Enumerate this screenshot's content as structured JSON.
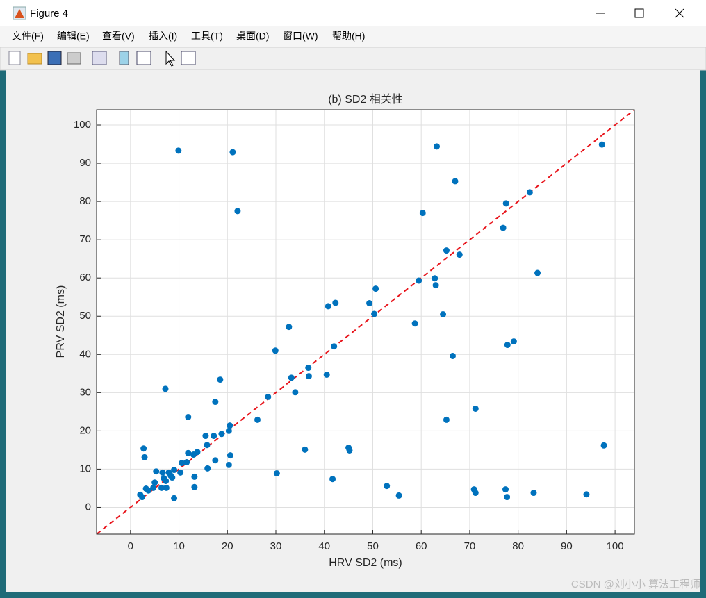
{
  "window": {
    "title": "Figure 4",
    "menu": [
      "文件(F)",
      "编辑(E)",
      "查看(V)",
      "插入(I)",
      "工具(T)",
      "桌面(D)",
      "窗口(W)",
      "帮助(H)"
    ]
  },
  "watermark": "CSDN @刘小小 算法工程师",
  "chart_data": {
    "type": "scatter",
    "title": "(b) SD2 相关性",
    "x_label": "HRV SD2 (ms)",
    "y_label": "PRV SD2 (ms)",
    "series": [
      {
        "color": "#0072bd",
        "x": [
          9.9,
          21.1,
          22.1,
          63.2,
          67.0,
          60.3,
          97.3,
          77.5,
          82.4,
          76.9,
          65.2,
          67.9,
          84.0,
          59.5,
          62.8,
          63.0,
          50.6,
          49.3,
          42.3,
          40.8,
          50.3,
          64.5,
          58.7,
          32.7,
          79.1,
          77.8,
          42.0,
          29.9,
          66.5,
          36.7,
          33.2,
          36.8,
          40.5,
          18.5,
          7.2,
          34.0,
          28.4,
          17.5,
          71.2,
          26.2,
          65.2,
          11.9,
          20.5,
          20.3,
          18.8,
          17.2,
          15.5,
          15.8,
          97.7,
          45.0,
          45.2,
          36.0,
          2.7,
          13.8,
          13.0,
          11.9,
          20.6,
          2.9,
          17.5,
          11.6,
          10.6,
          20.3,
          15.9,
          9.0,
          5.3,
          10.3,
          6.6,
          7.9,
          30.2,
          8.3,
          13.2,
          6.9,
          8.6,
          41.7,
          5.0,
          7.3,
          52.9,
          13.2,
          7.4,
          6.4,
          4.7,
          3.2,
          3.7,
          70.9,
          77.4,
          71.2,
          83.2,
          94.1,
          55.4,
          77.7,
          2.0,
          2.4,
          9.0
        ],
        "values": [
          93.3,
          92.9,
          77.5,
          94.4,
          85.3,
          77.0,
          94.9,
          79.5,
          82.4,
          73.1,
          67.2,
          66.1,
          61.3,
          59.3,
          59.9,
          58.1,
          57.2,
          53.4,
          53.5,
          52.6,
          50.6,
          50.5,
          48.1,
          47.2,
          43.4,
          42.5,
          42.1,
          41.0,
          39.6,
          36.5,
          33.9,
          34.3,
          34.7,
          33.4,
          31.0,
          30.1,
          28.9,
          27.6,
          25.8,
          22.9,
          22.9,
          23.6,
          21.4,
          20.0,
          19.2,
          18.7,
          18.7,
          16.3,
          16.2,
          15.6,
          14.9,
          15.1,
          15.4,
          14.5,
          13.8,
          14.2,
          13.6,
          13.1,
          12.3,
          11.8,
          11.6,
          11.1,
          10.2,
          9.8,
          9.4,
          9.1,
          9.1,
          9.1,
          8.9,
          8.3,
          8.0,
          7.6,
          7.8,
          7.4,
          6.5,
          6.9,
          5.6,
          5.3,
          5.1,
          5.1,
          5.1,
          4.9,
          4.4,
          4.7,
          4.7,
          3.8,
          3.8,
          3.4,
          3.1,
          2.7,
          3.3,
          2.7,
          2.4
        ]
      }
    ],
    "reference_line": {
      "color": "#e8141b",
      "x": [
        -7,
        104
      ],
      "y": [
        -7,
        104
      ]
    },
    "xlim": [
      -7,
      104
    ],
    "ylim": [
      -7,
      104
    ],
    "xticks": [
      0,
      10,
      20,
      30,
      40,
      50,
      60,
      70,
      80,
      90,
      100
    ],
    "yticks": [
      0,
      10,
      20,
      30,
      40,
      50,
      60,
      70,
      80,
      90,
      100
    ],
    "grid": true
  }
}
